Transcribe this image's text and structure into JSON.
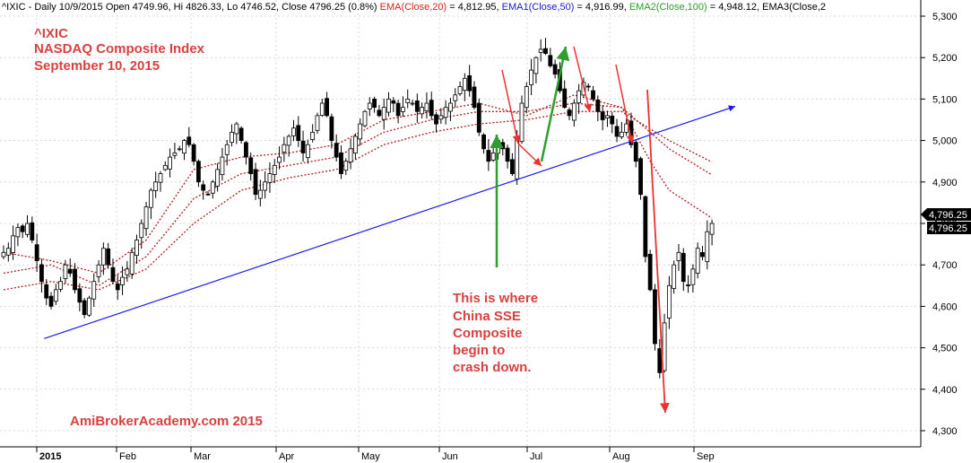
{
  "header": {
    "prefix": "^IXIC - Daily 10/9/2015 Open 4749.96, Hi 4826.33, Lo 4746.52, Close 4796.25 (0.8%) ",
    "ema20_label": "EMA(Close,20)",
    "ema20_value": " = 4,812.95, ",
    "ema50_label": "EMA1(Close,50)",
    "ema50_value": " = 4,916.99, ",
    "ema100_label": "EMA2(Close,100)",
    "ema100_value": " = 4,948.12, ",
    "ema3_label": "EMA3(Close,2"
  },
  "title": {
    "line1": "^IXIC",
    "line2": "NASDAQ Composite Index",
    "line3": "September 10, 2015"
  },
  "annotation": {
    "lines": [
      "This is where",
      "China SSE",
      "Composite",
      "begin to",
      "crash down."
    ]
  },
  "watermark": "AmiBrokerAcademy.com 2015",
  "price_tags": [
    "4,796.25",
    "4,796.25"
  ],
  "colors": {
    "ema20": "#d62020",
    "ema50": "#1a1ad6",
    "ema100": "#2aa02a",
    "annotation": "#d94040",
    "trendline": "#1a1aee",
    "green_arrow": "#2e9e2e",
    "red_arrow": "#ee3030",
    "ema_dotted": "#b02020"
  },
  "chart_data": {
    "type": "candlestick",
    "y_axis": {
      "ticks": [
        4300,
        4400,
        4500,
        4600,
        4700,
        4800,
        4900,
        5000,
        5100,
        5200,
        5300
      ],
      "tick_labels": [
        "4,300",
        "4,400",
        "4,500",
        "4,600",
        "4,700",
        "4,800",
        "4,900",
        "5,000",
        "5,100",
        "5,200",
        "5,300"
      ],
      "range": [
        4270,
        5320
      ]
    },
    "x_axis": {
      "labels": [
        "2015",
        "Feb",
        "Mar",
        "Apr",
        "May",
        "Jun",
        "Jul",
        "Aug",
        "Sep"
      ]
    },
    "close_path": [
      [
        0,
        4730
      ],
      [
        1,
        4740
      ],
      [
        2,
        4770
      ],
      [
        3,
        4790
      ],
      [
        4,
        4780
      ],
      [
        5,
        4800
      ],
      [
        6,
        4760
      ],
      [
        7,
        4710
      ],
      [
        8,
        4660
      ],
      [
        9,
        4620
      ],
      [
        10,
        4600
      ],
      [
        11,
        4640
      ],
      [
        12,
        4660
      ],
      [
        13,
        4700
      ],
      [
        14,
        4680
      ],
      [
        15,
        4640
      ],
      [
        16,
        4610
      ],
      [
        17,
        4580
      ],
      [
        18,
        4620
      ],
      [
        19,
        4660
      ],
      [
        20,
        4700
      ],
      [
        21,
        4740
      ],
      [
        22,
        4700
      ],
      [
        23,
        4660
      ],
      [
        24,
        4640
      ],
      [
        25,
        4670
      ],
      [
        26,
        4690
      ],
      [
        27,
        4730
      ],
      [
        28,
        4760
      ],
      [
        29,
        4800
      ],
      [
        30,
        4840
      ],
      [
        31,
        4880
      ],
      [
        32,
        4900
      ],
      [
        33,
        4920
      ],
      [
        34,
        4940
      ],
      [
        35,
        4960
      ],
      [
        36,
        4970
      ],
      [
        37,
        4980
      ],
      [
        38,
        5000
      ],
      [
        39,
        4990
      ],
      [
        40,
        4950
      ],
      [
        41,
        4900
      ],
      [
        42,
        4880
      ],
      [
        43,
        4870
      ],
      [
        44,
        4900
      ],
      [
        45,
        4930
      ],
      [
        46,
        4960
      ],
      [
        47,
        4990
      ],
      [
        48,
        5020
      ],
      [
        49,
        5040
      ],
      [
        50,
        5000
      ],
      [
        51,
        4960
      ],
      [
        52,
        4920
      ],
      [
        53,
        4870
      ],
      [
        54,
        4880
      ],
      [
        55,
        4900
      ],
      [
        56,
        4920
      ],
      [
        57,
        4940
      ],
      [
        58,
        4960
      ],
      [
        59,
        4990
      ],
      [
        60,
        5010
      ],
      [
        61,
        5030
      ],
      [
        62,
        5000
      ],
      [
        63,
        4970
      ],
      [
        64,
        4990
      ],
      [
        65,
        5020
      ],
      [
        66,
        5060
      ],
      [
        67,
        5090
      ],
      [
        68,
        5060
      ],
      [
        69,
        5000
      ],
      [
        70,
        4960
      ],
      [
        71,
        4920
      ],
      [
        72,
        4950
      ],
      [
        73,
        4980
      ],
      [
        74,
        5010
      ],
      [
        75,
        5040
      ],
      [
        76,
        5070
      ],
      [
        77,
        5090
      ],
      [
        78,
        5080
      ],
      [
        79,
        5060
      ],
      [
        80,
        5080
      ],
      [
        81,
        5100
      ],
      [
        82,
        5090
      ],
      [
        83,
        5060
      ],
      [
        84,
        5080
      ],
      [
        85,
        5100
      ],
      [
        86,
        5090
      ],
      [
        87,
        5070
      ],
      [
        88,
        5080
      ],
      [
        89,
        5090
      ],
      [
        90,
        5060
      ],
      [
        91,
        5040
      ],
      [
        92,
        5060
      ],
      [
        93,
        5080
      ],
      [
        94,
        5090
      ],
      [
        95,
        5110
      ],
      [
        96,
        5130
      ],
      [
        97,
        5150
      ],
      [
        98,
        5120
      ],
      [
        99,
        5080
      ],
      [
        100,
        5020
      ],
      [
        101,
        4980
      ],
      [
        102,
        4950
      ],
      [
        103,
        4970
      ],
      [
        104,
        5000
      ],
      [
        105,
        4980
      ],
      [
        106,
        4950
      ],
      [
        107,
        4920
      ],
      [
        108,
        5010
      ],
      [
        109,
        5090
      ],
      [
        110,
        5130
      ],
      [
        111,
        5170
      ],
      [
        112,
        5200
      ],
      [
        113,
        5220
      ],
      [
        114,
        5210
      ],
      [
        115,
        5180
      ],
      [
        116,
        5160
      ],
      [
        117,
        5120
      ],
      [
        118,
        5080
      ],
      [
        119,
        5060
      ],
      [
        120,
        5090
      ],
      [
        121,
        5120
      ],
      [
        122,
        5140
      ],
      [
        123,
        5130
      ],
      [
        124,
        5100
      ],
      [
        125,
        5070
      ],
      [
        126,
        5050
      ],
      [
        127,
        5060
      ],
      [
        128,
        5040
      ],
      [
        129,
        5010
      ],
      [
        130,
        5020
      ],
      [
        131,
        5040
      ],
      [
        132,
        4990
      ],
      [
        133,
        4950
      ],
      [
        134,
        4870
      ],
      [
        135,
        4720
      ],
      [
        136,
        4640
      ],
      [
        137,
        4510
      ],
      [
        138,
        4440
      ],
      [
        139,
        4560
      ],
      [
        140,
        4650
      ],
      [
        141,
        4700
      ],
      [
        142,
        4730
      ],
      [
        143,
        4660
      ],
      [
        144,
        4650
      ],
      [
        145,
        4690
      ],
      [
        146,
        4740
      ],
      [
        147,
        4720
      ],
      [
        148,
        4780
      ],
      [
        149,
        4800
      ]
    ],
    "ema20": [
      [
        0,
        4730
      ],
      [
        10,
        4710
      ],
      [
        20,
        4680
      ],
      [
        30,
        4760
      ],
      [
        40,
        4930
      ],
      [
        50,
        4960
      ],
      [
        60,
        4970
      ],
      [
        70,
        4990
      ],
      [
        80,
        5050
      ],
      [
        90,
        5070
      ],
      [
        100,
        5090
      ],
      [
        110,
        5060
      ],
      [
        120,
        5110
      ],
      [
        130,
        5080
      ],
      [
        136,
        4950
      ],
      [
        140,
        4880
      ],
      [
        149,
        4813
      ]
    ],
    "ema50": [
      [
        0,
        4680
      ],
      [
        10,
        4700
      ],
      [
        20,
        4650
      ],
      [
        30,
        4720
      ],
      [
        40,
        4860
      ],
      [
        50,
        4920
      ],
      [
        60,
        4940
      ],
      [
        70,
        4960
      ],
      [
        80,
        5020
      ],
      [
        90,
        5050
      ],
      [
        100,
        5070
      ],
      [
        110,
        5070
      ],
      [
        120,
        5090
      ],
      [
        130,
        5080
      ],
      [
        140,
        4980
      ],
      [
        149,
        4917
      ]
    ],
    "ema100": [
      [
        0,
        4640
      ],
      [
        10,
        4660
      ],
      [
        20,
        4640
      ],
      [
        30,
        4690
      ],
      [
        40,
        4800
      ],
      [
        50,
        4880
      ],
      [
        60,
        4910
      ],
      [
        70,
        4930
      ],
      [
        80,
        4990
      ],
      [
        90,
        5020
      ],
      [
        100,
        5040
      ],
      [
        110,
        5050
      ],
      [
        120,
        5070
      ],
      [
        130,
        5070
      ],
      [
        140,
        5000
      ],
      [
        149,
        4948
      ]
    ],
    "trendline": {
      "from": [
        1,
        4520
      ],
      "to": [
        152,
        5050
      ]
    }
  }
}
